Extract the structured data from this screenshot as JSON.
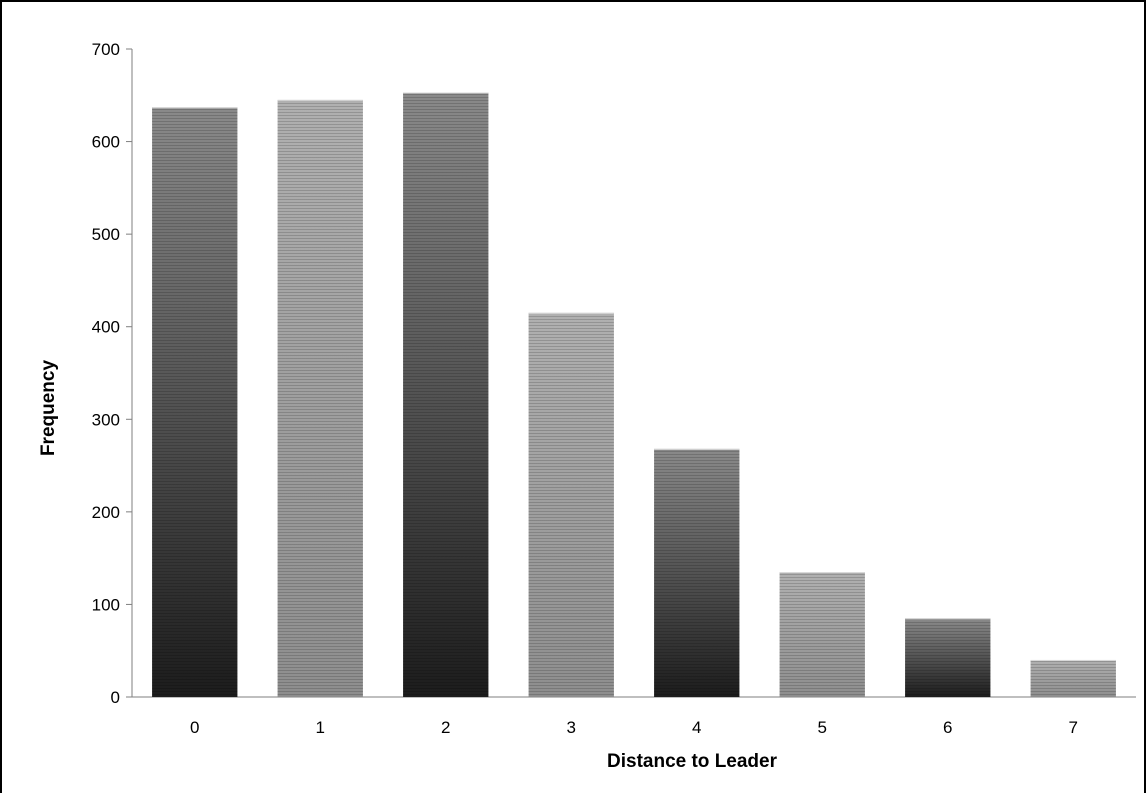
{
  "chart_data": {
    "type": "bar",
    "title": "",
    "xlabel": "Distance to Leader",
    "ylabel": "Frequency",
    "categories": [
      "0",
      "1",
      "2",
      "3",
      "4",
      "5",
      "6",
      "7"
    ],
    "values": [
      637,
      645,
      653,
      415,
      268,
      135,
      85,
      40
    ],
    "ylim": [
      0,
      700
    ],
    "yticks": [
      "0",
      "100",
      "200",
      "300",
      "400",
      "500",
      "600",
      "700"
    ],
    "grid": false,
    "legend": "none",
    "colors": {
      "dark_bar_top": "#8a8a8a",
      "dark_bar_bottom": "#1c1c1c",
      "light_bar_top": "#b0b0b0",
      "light_bar_bottom": "#8e8e8e",
      "axis": "#7f7f7f"
    }
  }
}
